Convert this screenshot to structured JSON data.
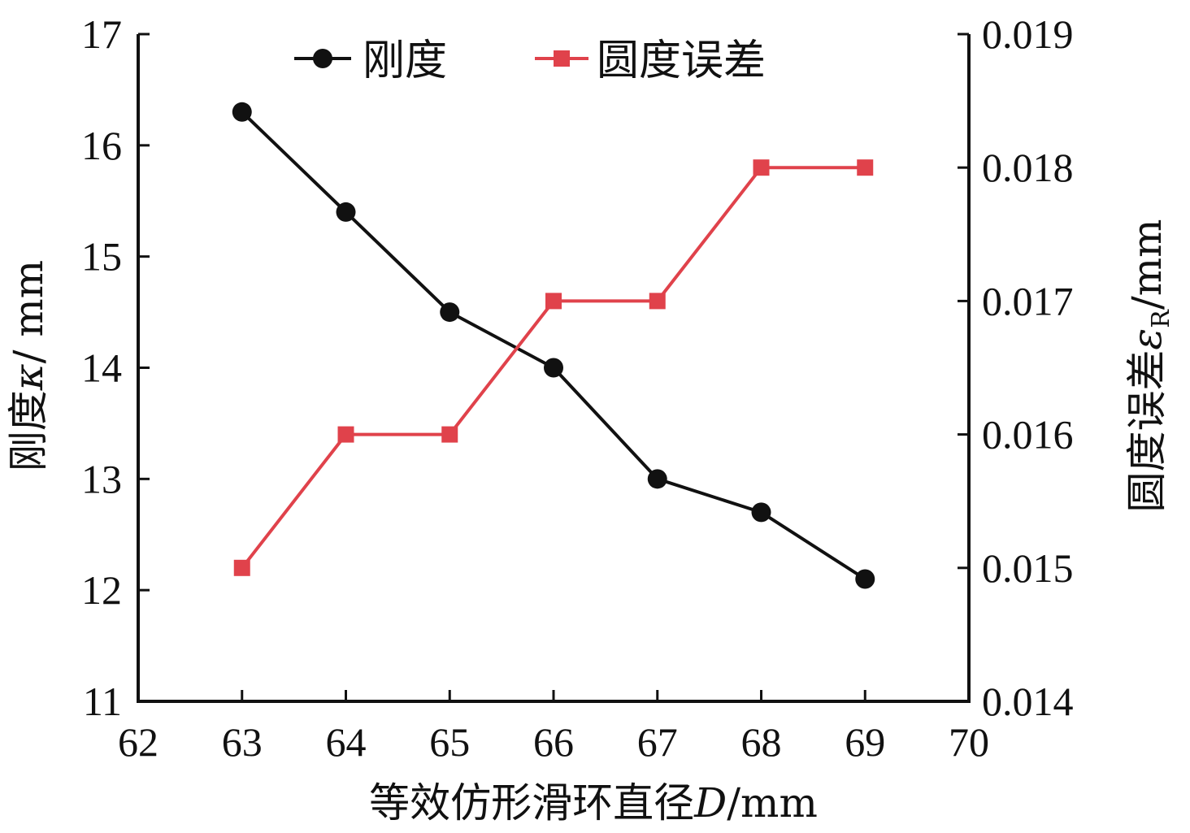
{
  "chart_data": {
    "type": "line",
    "xlabel_prefix": "等效仿形滑环直径",
    "xlabel_var": "D",
    "xlabel_unit": "/mm",
    "ylabel_left_prefix": "刚度",
    "ylabel_left_var": "κ",
    "ylabel_left_unit": "/ mm",
    "ylabel_right_prefix": "圆度误差",
    "ylabel_right_var": "ε",
    "ylabel_right_sub": "R",
    "ylabel_right_unit": "/mm",
    "xlim": [
      62,
      70
    ],
    "ylim_left": [
      11,
      17
    ],
    "ylim_right": [
      0.014,
      0.019
    ],
    "x_ticks": [
      62,
      63,
      64,
      65,
      66,
      67,
      68,
      69,
      70
    ],
    "y_left_ticks": [
      11,
      12,
      13,
      14,
      15,
      16,
      17
    ],
    "y_right_ticks": [
      "0.014",
      "0.015",
      "0.016",
      "0.017",
      "0.018",
      "0.019"
    ],
    "legend_position": "top",
    "grid": false,
    "series": [
      {
        "name": "刚度",
        "axis": "left",
        "marker": "circle",
        "color": "#111111",
        "x": [
          63,
          64,
          65,
          66,
          67,
          68,
          69
        ],
        "values": [
          16.3,
          15.4,
          14.5,
          14.0,
          13.0,
          12.7,
          12.1
        ]
      },
      {
        "name": "圆度误差",
        "axis": "right",
        "marker": "square",
        "color": "#e0424b",
        "x": [
          63,
          64,
          65,
          66,
          67,
          68,
          69
        ],
        "values": [
          0.015,
          0.016,
          0.016,
          0.017,
          0.017,
          0.018,
          0.018
        ]
      }
    ]
  }
}
